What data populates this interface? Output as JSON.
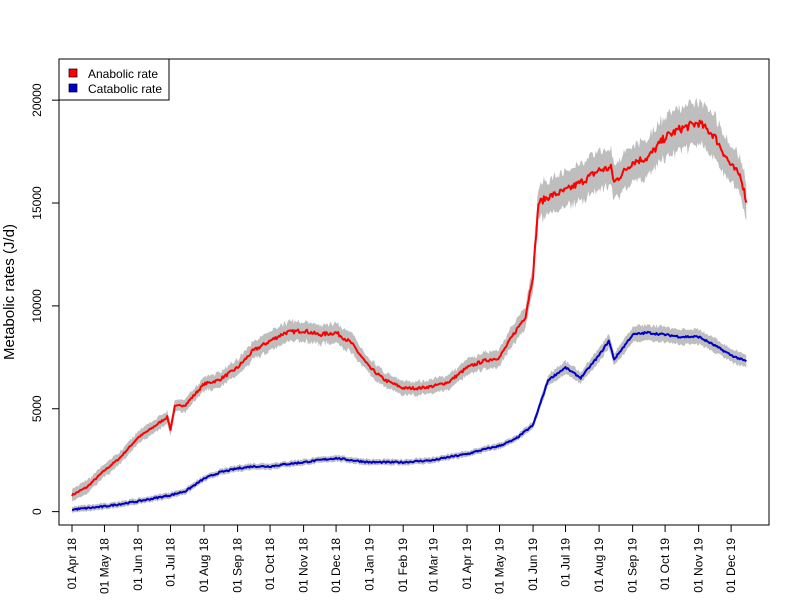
{
  "chart_data": {
    "type": "line",
    "title": "",
    "xlabel": "",
    "ylabel": "Metabolic rates (J/d)",
    "x_tick_labels": [
      "01 Apr 18",
      "01 May 18",
      "01 Jun 18",
      "01 Jul 18",
      "01 Aug 18",
      "01 Sep 18",
      "01 Oct 18",
      "01 Nov 18",
      "01 Dec 18",
      "01 Jan 19",
      "01 Feb 19",
      "01 Mar 19",
      "01 Apr 19",
      "01 May 19",
      "01 Jun 19",
      "01 Jul 19",
      "01 Aug 19",
      "01 Sep 19",
      "01 Oct 19",
      "01 Nov 19",
      "01 Dec 19"
    ],
    "x_tick_dates": [
      "2018-04-01",
      "2018-05-01",
      "2018-06-01",
      "2018-07-01",
      "2018-08-01",
      "2018-09-01",
      "2018-10-01",
      "2018-11-01",
      "2018-12-01",
      "2019-01-01",
      "2019-02-01",
      "2019-03-01",
      "2019-04-01",
      "2019-05-01",
      "2019-06-01",
      "2019-07-01",
      "2019-08-01",
      "2019-09-01",
      "2019-10-01",
      "2019-11-01",
      "2019-12-01"
    ],
    "y_tick_labels": [
      "0",
      "5000",
      "10000",
      "15000",
      "20000"
    ],
    "ylim": [
      -650,
      22000
    ],
    "xlim": [
      "2018-03-20",
      "2020-01-05"
    ],
    "grid": false,
    "legend": "top-left",
    "colors": {
      "anabolic": "#ff0000",
      "catabolic": "#0000cc",
      "band": "#bebebe"
    },
    "series": [
      {
        "name": "Anabolic rate",
        "color": "#ff0000",
        "x": [
          "2018-04-01",
          "2018-04-15",
          "2018-05-01",
          "2018-05-15",
          "2018-06-01",
          "2018-06-15",
          "2018-06-28",
          "2018-07-01",
          "2018-07-05",
          "2018-07-15",
          "2018-08-01",
          "2018-08-15",
          "2018-09-01",
          "2018-09-15",
          "2018-10-01",
          "2018-10-15",
          "2018-11-01",
          "2018-11-15",
          "2018-12-01",
          "2018-12-15",
          "2019-01-01",
          "2019-01-15",
          "2019-02-01",
          "2019-02-15",
          "2019-03-01",
          "2019-03-15",
          "2019-04-01",
          "2019-04-15",
          "2019-05-01",
          "2019-05-15",
          "2019-05-25",
          "2019-06-01",
          "2019-06-06",
          "2019-06-15",
          "2019-07-01",
          "2019-07-15",
          "2019-08-01",
          "2019-08-12",
          "2019-08-15",
          "2019-09-01",
          "2019-09-15",
          "2019-10-01",
          "2019-10-15",
          "2019-11-01",
          "2019-11-15",
          "2019-12-01",
          "2019-12-10",
          "2019-12-15"
        ],
        "y": [
          800,
          1200,
          2000,
          2600,
          3600,
          4100,
          4600,
          4000,
          5100,
          5200,
          6200,
          6400,
          7000,
          7800,
          8300,
          8700,
          8800,
          8600,
          8700,
          8200,
          7000,
          6400,
          6000,
          6000,
          6100,
          6300,
          7000,
          7300,
          7500,
          8700,
          9500,
          11500,
          15000,
          15300,
          15600,
          16000,
          16600,
          16700,
          16000,
          17000,
          17200,
          18200,
          18600,
          18900,
          18300,
          16800,
          16300,
          15100
        ]
      },
      {
        "name": "Catabolic rate",
        "color": "#0000cc",
        "x": [
          "2018-04-01",
          "2018-05-01",
          "2018-06-01",
          "2018-07-01",
          "2018-07-15",
          "2018-08-01",
          "2018-08-15",
          "2018-09-01",
          "2018-09-15",
          "2018-10-01",
          "2018-10-15",
          "2018-11-01",
          "2018-11-15",
          "2018-12-01",
          "2018-12-15",
          "2019-01-01",
          "2019-01-15",
          "2019-02-01",
          "2019-02-15",
          "2019-03-01",
          "2019-03-15",
          "2019-04-01",
          "2019-04-15",
          "2019-05-01",
          "2019-05-15",
          "2019-06-01",
          "2019-06-15",
          "2019-07-01",
          "2019-07-15",
          "2019-08-01",
          "2019-08-10",
          "2019-08-15",
          "2019-09-01",
          "2019-09-15",
          "2019-10-01",
          "2019-10-15",
          "2019-11-01",
          "2019-11-15",
          "2019-12-01",
          "2019-12-15"
        ],
        "y": [
          100,
          250,
          500,
          800,
          1000,
          1600,
          1900,
          2100,
          2200,
          2200,
          2300,
          2400,
          2500,
          2600,
          2500,
          2400,
          2400,
          2400,
          2450,
          2500,
          2650,
          2800,
          3000,
          3200,
          3500,
          4200,
          6400,
          7000,
          6500,
          7600,
          8300,
          7400,
          8600,
          8700,
          8600,
          8500,
          8500,
          8100,
          7600,
          7300
        ]
      }
    ]
  }
}
